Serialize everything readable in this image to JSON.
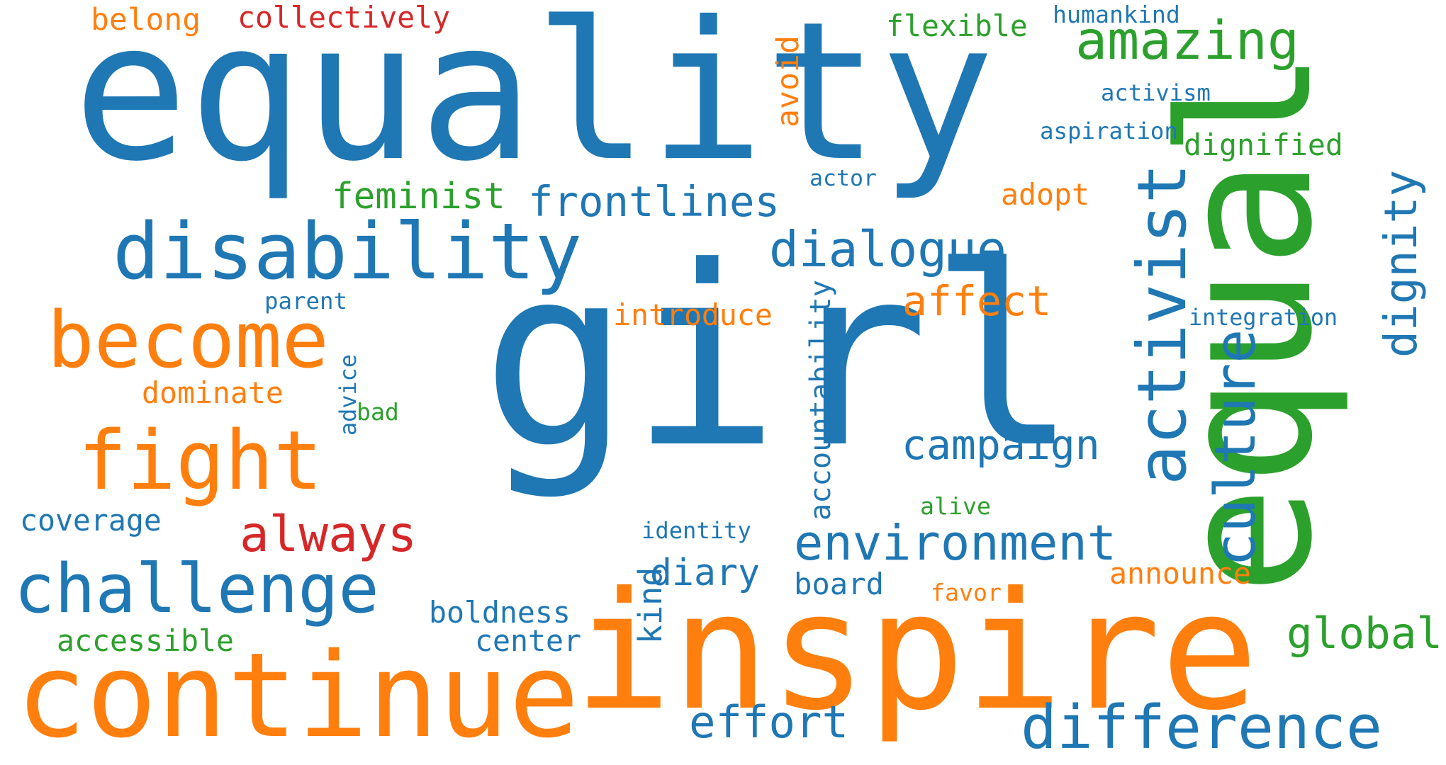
{
  "palette": {
    "blue": "#1f77b4",
    "orange": "#ff7f0e",
    "green": "#2ca02c",
    "red": "#d62728"
  },
  "words": [
    {
      "id": "girl",
      "text": "girl",
      "color": "blue",
      "vertical": false
    },
    {
      "id": "equality",
      "text": "equality",
      "color": "blue",
      "vertical": false
    },
    {
      "id": "equal",
      "text": "equal",
      "color": "green",
      "vertical": true
    },
    {
      "id": "inspire",
      "text": "inspire",
      "color": "orange",
      "vertical": false
    },
    {
      "id": "continue",
      "text": "continue",
      "color": "orange",
      "vertical": false
    },
    {
      "id": "disability",
      "text": "disability",
      "color": "blue",
      "vertical": false
    },
    {
      "id": "become",
      "text": "become",
      "color": "orange",
      "vertical": false
    },
    {
      "id": "fight",
      "text": "fight",
      "color": "orange",
      "vertical": false
    },
    {
      "id": "challenge",
      "text": "challenge",
      "color": "blue",
      "vertical": false
    },
    {
      "id": "activist",
      "text": "activist",
      "color": "blue",
      "vertical": true
    },
    {
      "id": "difference",
      "text": "difference",
      "color": "blue",
      "vertical": false
    },
    {
      "id": "amazing",
      "text": "amazing",
      "color": "green",
      "vertical": false
    },
    {
      "id": "environment",
      "text": "environment",
      "color": "blue",
      "vertical": false
    },
    {
      "id": "culture",
      "text": "culture",
      "color": "blue",
      "vertical": true
    },
    {
      "id": "dialogue",
      "text": "dialogue",
      "color": "blue",
      "vertical": false
    },
    {
      "id": "frontlines",
      "text": "frontlines",
      "color": "blue",
      "vertical": false
    },
    {
      "id": "always",
      "text": "always",
      "color": "red",
      "vertical": false
    },
    {
      "id": "effort",
      "text": "effort",
      "color": "blue",
      "vertical": false
    },
    {
      "id": "affect",
      "text": "affect",
      "color": "orange",
      "vertical": false
    },
    {
      "id": "campaign",
      "text": "campaign",
      "color": "blue",
      "vertical": false
    },
    {
      "id": "global",
      "text": "global",
      "color": "green",
      "vertical": false
    },
    {
      "id": "dignity",
      "text": "dignity",
      "color": "blue",
      "vertical": true
    },
    {
      "id": "feminist",
      "text": "feminist",
      "color": "green",
      "vertical": false
    },
    {
      "id": "diary",
      "text": "diary",
      "color": "blue",
      "vertical": false
    },
    {
      "id": "accountability",
      "text": "accountability",
      "color": "blue",
      "vertical": true
    },
    {
      "id": "collectively",
      "text": "collectively",
      "color": "red",
      "vertical": false
    },
    {
      "id": "flexible",
      "text": "flexible",
      "color": "green",
      "vertical": false
    },
    {
      "id": "belong",
      "text": "belong",
      "color": "orange",
      "vertical": false
    },
    {
      "id": "dignified",
      "text": "dignified",
      "color": "green",
      "vertical": false
    },
    {
      "id": "introduce",
      "text": "introduce",
      "color": "orange",
      "vertical": false
    },
    {
      "id": "dominate",
      "text": "dominate",
      "color": "orange",
      "vertical": false
    },
    {
      "id": "coverage",
      "text": "coverage",
      "color": "blue",
      "vertical": false
    },
    {
      "id": "accessible",
      "text": "accessible",
      "color": "green",
      "vertical": false
    },
    {
      "id": "boldness",
      "text": "boldness",
      "color": "blue",
      "vertical": false
    },
    {
      "id": "center",
      "text": "center",
      "color": "blue",
      "vertical": false
    },
    {
      "id": "board",
      "text": "board",
      "color": "blue",
      "vertical": false
    },
    {
      "id": "announce",
      "text": "announce",
      "color": "orange",
      "vertical": false
    },
    {
      "id": "avoid",
      "text": "avoid",
      "color": "orange",
      "vertical": true
    },
    {
      "id": "adopt",
      "text": "adopt",
      "color": "orange",
      "vertical": false
    },
    {
      "id": "activism",
      "text": "activism",
      "color": "blue",
      "vertical": false
    },
    {
      "id": "aspiration",
      "text": "aspiration",
      "color": "blue",
      "vertical": false
    },
    {
      "id": "integration",
      "text": "integration",
      "color": "blue",
      "vertical": false
    },
    {
      "id": "humankind",
      "text": "humankind",
      "color": "blue",
      "vertical": false
    },
    {
      "id": "parent",
      "text": "parent",
      "color": "blue",
      "vertical": false
    },
    {
      "id": "actor",
      "text": "actor",
      "color": "blue",
      "vertical": false
    },
    {
      "id": "advice",
      "text": "advice",
      "color": "blue",
      "vertical": true
    },
    {
      "id": "bad",
      "text": "bad",
      "color": "green",
      "vertical": false
    },
    {
      "id": "identity",
      "text": "identity",
      "color": "blue",
      "vertical": false
    },
    {
      "id": "alive",
      "text": "alive",
      "color": "green",
      "vertical": false
    },
    {
      "id": "favor",
      "text": "favor",
      "color": "orange",
      "vertical": false
    },
    {
      "id": "kind",
      "text": "kind",
      "color": "blue",
      "vertical": true
    }
  ]
}
